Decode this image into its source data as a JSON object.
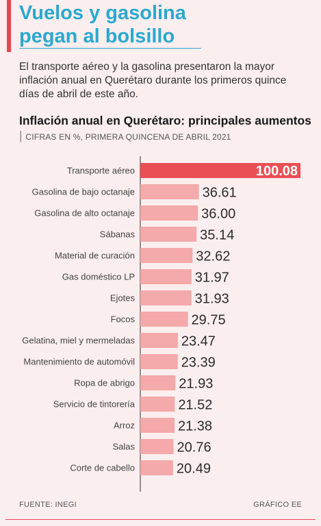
{
  "header": {
    "title_line1": "Vuelos y gasolina",
    "title_line2": "pegan al bolsillo",
    "intro": "El transporte aéreo y la gasolina presentaron la mayor inflación anual en Querétaro durante los primeros quince días de abril de este año."
  },
  "colors": {
    "accent": "#e8464e",
    "title_blue": "#29a9cf",
    "bar_highlight": "#ea4f55",
    "bar_default": "#f4a9aa",
    "background": "#fbeeee"
  },
  "chart_data": {
    "type": "bar",
    "orientation": "horizontal",
    "title": "Inflación anual en Querétaro: principales aumentos",
    "subtitle": "CIFRAS EN %, PRIMERA QUINCENA DE ABRIL 2021",
    "categories": [
      "Transporte aéreo",
      "Gasolina de bajo octanaje",
      "Gasolina de alto octanaje",
      "Sábanas",
      "Material de curación",
      "Gas doméstico LP",
      "Ejotes",
      "Focos",
      "Gelatina, miel y mermeladas",
      "Mantenimiento de automóvil",
      "Ropa de abrigo",
      "Servicio de tintorería",
      "Arroz",
      "Salas",
      "Corte de cabello"
    ],
    "values": [
      100.08,
      36.61,
      36.0,
      35.14,
      32.62,
      31.97,
      31.93,
      29.75,
      23.47,
      23.39,
      21.93,
      21.52,
      21.38,
      20.76,
      20.49
    ],
    "value_labels": [
      "100.08",
      "36.61",
      "36.00",
      "35.14",
      "32.62",
      "31.97",
      "31.93",
      "29.75",
      "23.47",
      "23.39",
      "21.93",
      "21.52",
      "21.38",
      "20.76",
      "20.49"
    ],
    "highlight_index": 0,
    "xlim": [
      0,
      100.08
    ]
  },
  "footer": {
    "source": "FUENTE: INEGI",
    "credit": "GRÁFICO EE"
  }
}
